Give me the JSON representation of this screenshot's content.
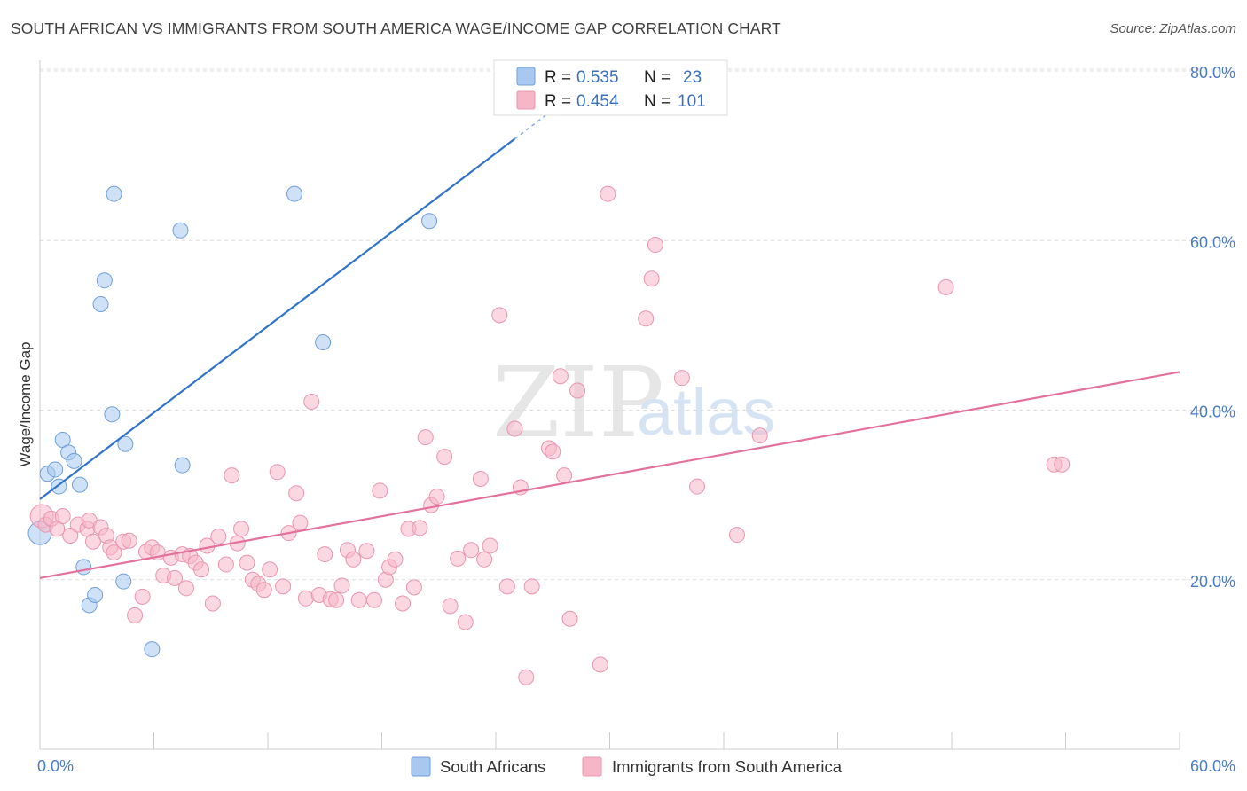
{
  "title": "SOUTH AFRICAN VS IMMIGRANTS FROM SOUTH AMERICA WAGE/INCOME GAP CORRELATION CHART",
  "source": "Source: ZipAtlas.com",
  "watermark": {
    "zip": "ZIP",
    "atlas": "atlas"
  },
  "legend": {
    "rows": [
      {
        "r_label": "R =",
        "r_value": "0.535",
        "n_label": "N =",
        "n_value": "23",
        "color": "#a8c8f0"
      },
      {
        "r_label": "R =",
        "r_value": "0.454",
        "n_label": "N =",
        "n_value": "101",
        "color": "#f6b6c8"
      }
    ]
  },
  "chart_data": {
    "type": "scatter",
    "title": "SOUTH AFRICAN VS IMMIGRANTS FROM SOUTH AMERICA WAGE/INCOME GAP CORRELATION CHART",
    "xlabel": "",
    "ylabel": "Wage/Income Gap",
    "xlim": [
      0,
      60
    ],
    "ylim": [
      0,
      80
    ],
    "x_tick_labels": [
      {
        "value": 0,
        "label": "0.0%"
      },
      {
        "value": 60,
        "label": "60.0%"
      }
    ],
    "y_tick_labels": [
      {
        "value": 20,
        "label": "20.0%"
      },
      {
        "value": 40,
        "label": "40.0%"
      },
      {
        "value": 60,
        "label": "60.0%"
      },
      {
        "value": 80,
        "label": "80.0%"
      }
    ],
    "grid": true,
    "legend_position": "bottom",
    "series": [
      {
        "name": "South Africans",
        "color": "#a8c8f0",
        "stroke": "#6f9fd8",
        "line_color": "#2f74c8",
        "trend": {
          "x0": 0,
          "y0": 29.5,
          "x1": 25,
          "y1": 72.0,
          "dashed_to_x": 27.5
        },
        "points": [
          [
            0.0,
            25.5
          ],
          [
            0.4,
            32.5
          ],
          [
            0.8,
            33.0
          ],
          [
            1.0,
            31.0
          ],
          [
            1.2,
            36.5
          ],
          [
            1.5,
            35.0
          ],
          [
            1.8,
            34.0
          ],
          [
            2.1,
            31.2
          ],
          [
            2.3,
            21.5
          ],
          [
            2.6,
            17.0
          ],
          [
            2.9,
            18.2
          ],
          [
            3.2,
            52.5
          ],
          [
            3.4,
            55.3
          ],
          [
            3.8,
            39.5
          ],
          [
            3.9,
            65.5
          ],
          [
            4.4,
            19.8
          ],
          [
            4.5,
            36.0
          ],
          [
            5.9,
            11.8
          ],
          [
            7.4,
            61.2
          ],
          [
            7.5,
            33.5
          ],
          [
            13.4,
            65.5
          ],
          [
            14.9,
            48.0
          ],
          [
            20.5,
            62.3
          ]
        ]
      },
      {
        "name": "Immigrants from South America",
        "color": "#f6b6c8",
        "stroke": "#e995b0",
        "line_color": "#e3719c",
        "trend": {
          "x0": 0,
          "y0": 20.2,
          "x1": 60,
          "y1": 44.5
        },
        "points": [
          [
            0.1,
            27.5
          ],
          [
            0.3,
            26.5
          ],
          [
            0.6,
            27.2
          ],
          [
            0.9,
            26.0
          ],
          [
            1.2,
            27.5
          ],
          [
            1.6,
            25.2
          ],
          [
            2.0,
            26.5
          ],
          [
            2.5,
            26.0
          ],
          [
            2.6,
            27.0
          ],
          [
            2.8,
            24.5
          ],
          [
            3.2,
            26.2
          ],
          [
            3.5,
            25.2
          ],
          [
            3.7,
            23.8
          ],
          [
            3.9,
            23.2
          ],
          [
            4.4,
            24.5
          ],
          [
            4.7,
            24.6
          ],
          [
            5.0,
            15.8
          ],
          [
            5.4,
            18.0
          ],
          [
            5.6,
            23.3
          ],
          [
            5.9,
            23.8
          ],
          [
            6.2,
            23.2
          ],
          [
            6.5,
            20.5
          ],
          [
            6.9,
            22.6
          ],
          [
            7.1,
            20.2
          ],
          [
            7.5,
            23.0
          ],
          [
            7.7,
            19.0
          ],
          [
            7.9,
            22.8
          ],
          [
            8.2,
            22.0
          ],
          [
            8.5,
            21.2
          ],
          [
            8.8,
            24.0
          ],
          [
            9.1,
            17.2
          ],
          [
            9.4,
            25.1
          ],
          [
            9.8,
            21.8
          ],
          [
            10.1,
            32.3
          ],
          [
            10.4,
            24.3
          ],
          [
            10.6,
            26.0
          ],
          [
            10.9,
            22.0
          ],
          [
            11.2,
            20.0
          ],
          [
            11.5,
            19.5
          ],
          [
            11.8,
            18.8
          ],
          [
            12.1,
            21.2
          ],
          [
            12.5,
            32.7
          ],
          [
            12.8,
            19.2
          ],
          [
            13.1,
            25.5
          ],
          [
            13.5,
            30.2
          ],
          [
            13.7,
            26.7
          ],
          [
            14.0,
            17.8
          ],
          [
            14.3,
            41.0
          ],
          [
            14.7,
            18.2
          ],
          [
            15.0,
            23.0
          ],
          [
            15.3,
            17.7
          ],
          [
            15.6,
            17.6
          ],
          [
            15.9,
            19.3
          ],
          [
            16.2,
            23.5
          ],
          [
            16.5,
            22.4
          ],
          [
            16.8,
            17.6
          ],
          [
            17.2,
            23.4
          ],
          [
            17.6,
            17.6
          ],
          [
            17.9,
            30.5
          ],
          [
            18.2,
            20.0
          ],
          [
            18.4,
            21.5
          ],
          [
            18.7,
            22.4
          ],
          [
            19.1,
            17.2
          ],
          [
            19.4,
            26.0
          ],
          [
            19.7,
            19.1
          ],
          [
            20.0,
            26.1
          ],
          [
            20.3,
            36.8
          ],
          [
            20.6,
            28.8
          ],
          [
            20.9,
            29.8
          ],
          [
            21.3,
            34.5
          ],
          [
            21.6,
            16.9
          ],
          [
            22.0,
            22.5
          ],
          [
            22.4,
            15.0
          ],
          [
            22.7,
            23.5
          ],
          [
            23.2,
            31.9
          ],
          [
            23.4,
            22.4
          ],
          [
            23.7,
            24.0
          ],
          [
            24.2,
            51.2
          ],
          [
            24.6,
            19.2
          ],
          [
            25.0,
            37.8
          ],
          [
            25.3,
            30.9
          ],
          [
            25.6,
            8.5
          ],
          [
            25.9,
            19.2
          ],
          [
            26.8,
            35.5
          ],
          [
            27.0,
            35.1
          ],
          [
            27.4,
            44.0
          ],
          [
            27.6,
            32.3
          ],
          [
            27.9,
            15.4
          ],
          [
            28.3,
            42.3
          ],
          [
            29.5,
            10.0
          ],
          [
            29.9,
            65.5
          ],
          [
            31.9,
            50.8
          ],
          [
            32.2,
            55.5
          ],
          [
            32.4,
            59.5
          ],
          [
            33.8,
            43.8
          ],
          [
            34.6,
            31.0
          ],
          [
            36.7,
            25.3
          ],
          [
            37.9,
            37.0
          ],
          [
            47.7,
            54.5
          ],
          [
            53.4,
            33.6
          ],
          [
            53.8,
            33.6
          ]
        ]
      }
    ]
  },
  "bottom_legend": [
    {
      "label": "South Africans",
      "color": "#a8c8f0"
    },
    {
      "label": "Immigrants from South America",
      "color": "#f6b6c8"
    }
  ]
}
